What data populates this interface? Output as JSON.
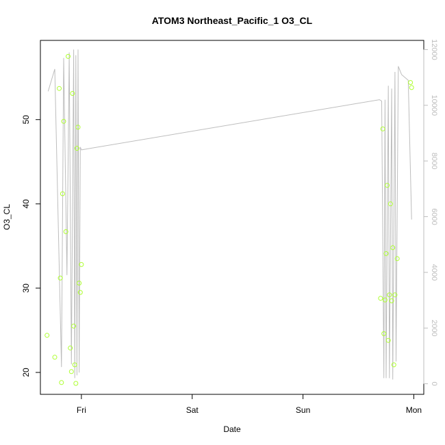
{
  "chart_data": {
    "type": "scatter",
    "title": "ATOM3 Northeast_Pacific_1 O3_CL",
    "xlabel": "Date",
    "ylabel": "O3_CL",
    "x_tick_labels": [
      "Fri",
      "Sat",
      "Sun",
      "Mon"
    ],
    "x_tick_days": [
      1,
      2,
      3,
      4
    ],
    "xlim_days": [
      0.63,
      4.09
    ],
    "ylim": [
      17.4,
      59.4
    ],
    "y_ticks": [
      20,
      30,
      40,
      50
    ],
    "y2lim": [
      -380,
      12330
    ],
    "y2_ticks": [
      0,
      2000,
      4000,
      6000,
      8000,
      10000,
      12000
    ],
    "grid": false,
    "legend": "none",
    "point_color": "#adff2f",
    "line_color": "#bdbdbd",
    "axis_color": "#000000",
    "series": [
      {
        "type": "points",
        "axis": "left",
        "x_days": [
          0.69,
          0.76,
          0.8,
          0.81,
          0.82,
          0.83,
          0.84,
          0.86,
          0.88,
          0.9,
          0.91,
          0.92,
          0.93,
          0.94,
          0.95,
          0.96,
          0.97,
          0.98,
          0.99,
          1.0,
          3.7,
          3.72,
          3.73,
          3.74,
          3.75,
          3.76,
          3.77,
          3.78,
          3.79,
          3.8,
          3.81,
          3.82,
          3.83,
          3.85,
          3.97,
          3.98
        ],
        "y": [
          24.4,
          21.8,
          53.7,
          31.2,
          18.8,
          41.2,
          49.8,
          36.7,
          57.5,
          22.9,
          20.1,
          53.1,
          25.5,
          20.9,
          18.7,
          46.6,
          49.1,
          30.6,
          29.5,
          32.8,
          28.8,
          48.9,
          24.6,
          28.6,
          34.1,
          42.2,
          23.8,
          29.2,
          40.0,
          28.5,
          34.8,
          20.9,
          29.2,
          33.5,
          54.4,
          53.8
        ]
      },
      {
        "type": "line",
        "axis": "right",
        "x_days": [
          0.7,
          0.76,
          0.82,
          0.84,
          0.87,
          0.89,
          0.91,
          0.93,
          0.94,
          0.95,
          0.96,
          0.97,
          0.98,
          0.99,
          1.0,
          3.69,
          3.71,
          3.73,
          3.74,
          3.75,
          3.77,
          3.78,
          3.8,
          3.81,
          3.83,
          3.84,
          3.86,
          3.87,
          3.89,
          3.95,
          3.98
        ],
        "y": [
          10500,
          11300,
          600,
          11700,
          3900,
          11900,
          700,
          12000,
          200,
          11800,
          300,
          12000,
          400,
          8500,
          8400,
          10200,
          10150,
          200,
          10200,
          200,
          10700,
          200,
          10600,
          150,
          11200,
          800,
          11400,
          11300,
          11100,
          10900,
          5900
        ]
      }
    ]
  }
}
